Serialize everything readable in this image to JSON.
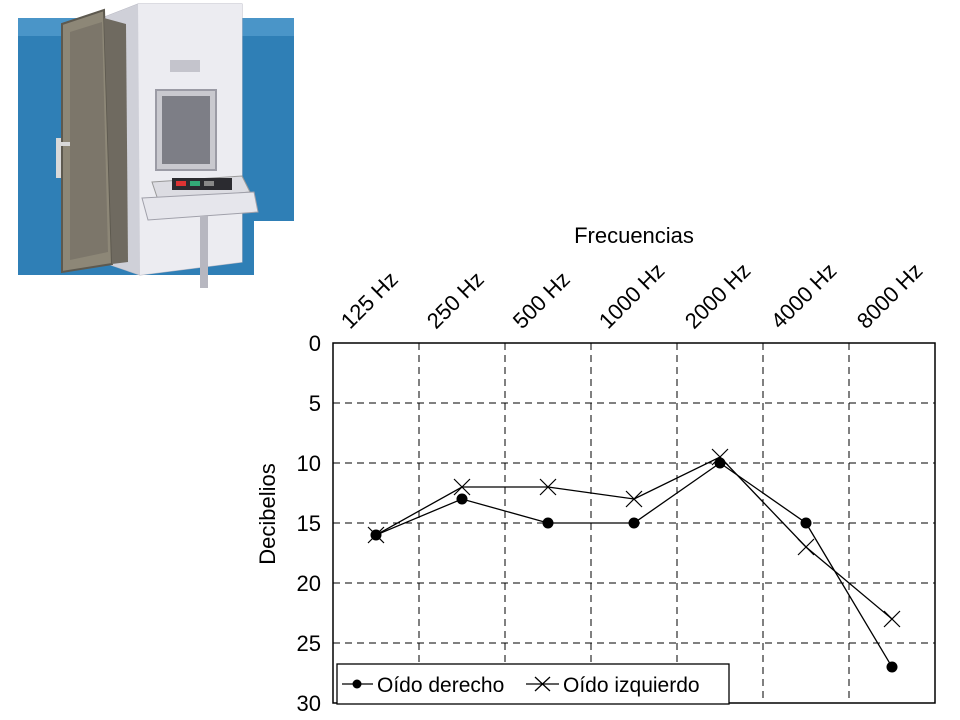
{
  "photo": {
    "icon": "audiometry-booth-icon",
    "bg_color": "#2f7fb6"
  },
  "chart_data": {
    "type": "line",
    "title": "",
    "xlabel": "Frecuencias",
    "ylabel": "Decibelios",
    "categories": [
      "125 Hz",
      "250 Hz",
      "500 Hz",
      "1000 Hz",
      "2000 Hz",
      "4000 Hz",
      "8000 Hz"
    ],
    "ylim": [
      0,
      30
    ],
    "y_inverted": true,
    "yticks": [
      0,
      5,
      10,
      15,
      20,
      25,
      30
    ],
    "grid": true,
    "legend": "bottom-left",
    "series": [
      {
        "name": "Oído derecho",
        "marker": "dot",
        "color": "#000000",
        "values": [
          16,
          13,
          15,
          15,
          10,
          15,
          27
        ]
      },
      {
        "name": "Oído izquierdo",
        "marker": "x",
        "color": "#000000",
        "values": [
          16,
          12,
          12,
          13,
          9.5,
          17,
          23
        ]
      }
    ]
  }
}
